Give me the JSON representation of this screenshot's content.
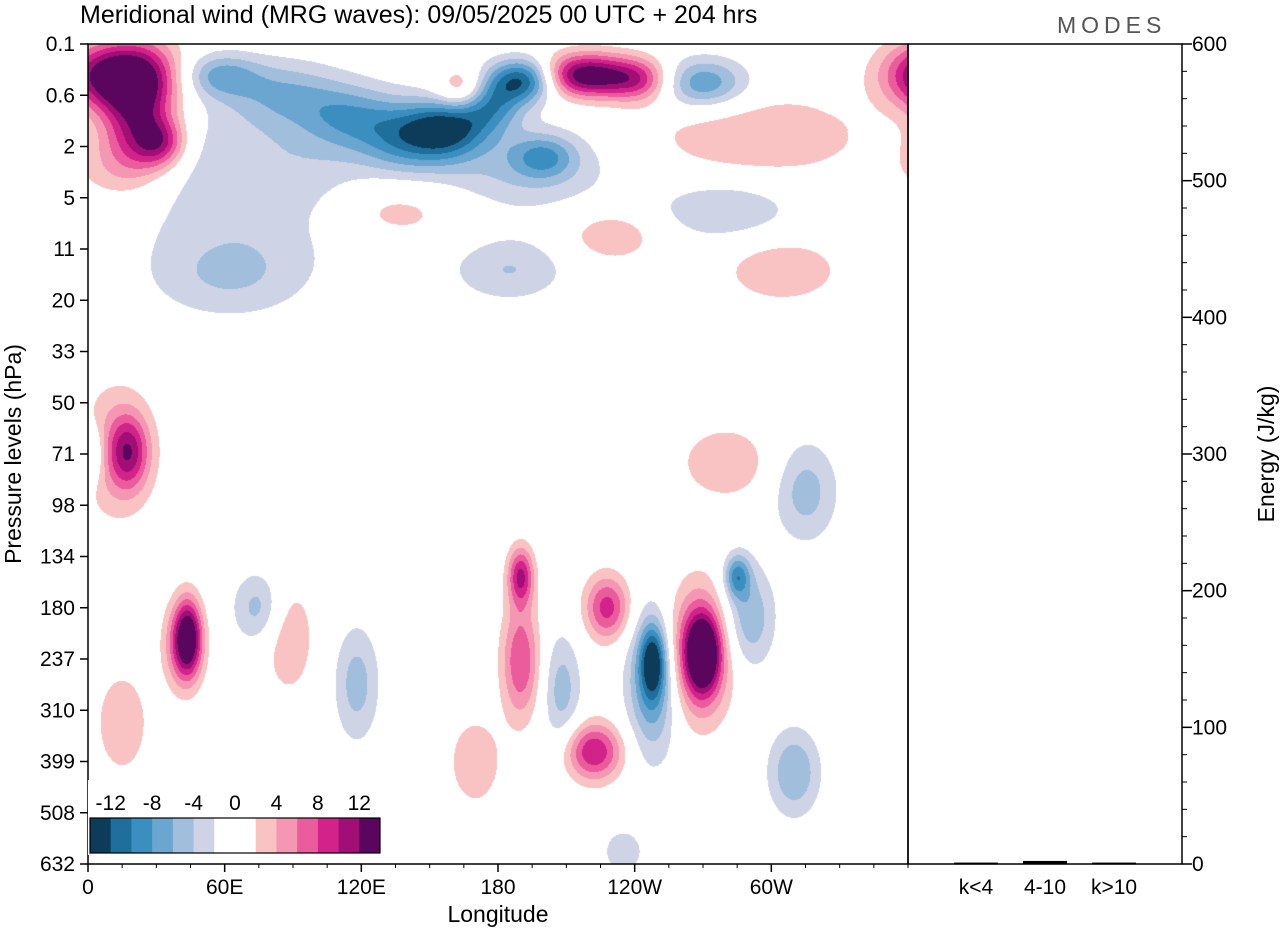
{
  "chart_data": {
    "type": "heatmap",
    "title": "Meridional wind (MRG waves):  09/05/2025  00 UTC  + 204 hrs",
    "brand": "MODES",
    "xlabel": "Longitude",
    "ylabel": "Pressure levels (hPa)",
    "x_ticks": [
      "0",
      "60E",
      "120E",
      "180",
      "120W",
      "60W"
    ],
    "y_ticks": [
      "0.1",
      "0.6",
      "2",
      "5",
      "11",
      "20",
      "33",
      "50",
      "71",
      "98",
      "134",
      "180",
      "237",
      "310",
      "399",
      "508",
      "632"
    ],
    "colorbar": {
      "labels": [
        "-12",
        "-8",
        "-4",
        "0",
        "4",
        "8",
        "12"
      ],
      "colors": [
        "#0d3b5a",
        "#1f6f9c",
        "#3b8fc0",
        "#6aa6cf",
        "#a1bedc",
        "#cfd3e6",
        "#ffffff",
        "#ffffff",
        "#f9c3c3",
        "#f597b2",
        "#ea5c9c",
        "#d2238b",
        "#a10e76",
        "#5a065f"
      ]
    },
    "blobs": [
      {
        "lon": 8,
        "lev": 0.3,
        "dlon": 14,
        "dlev": 0.45,
        "v": 12
      },
      {
        "lon": 25,
        "lev": 0.35,
        "dlon": 12,
        "dlev": 0.55,
        "v": 9
      },
      {
        "lon": 20,
        "lev": 1.2,
        "dlon": 10,
        "dlev": 0.6,
        "v": 8
      },
      {
        "lon": 32,
        "lev": 1.8,
        "dlon": 8,
        "dlev": 0.35,
        "v": 9
      },
      {
        "lon": 15,
        "lev": 3.0,
        "dlon": 16,
        "dlev": 0.5,
        "v": 4
      },
      {
        "lon": 58,
        "lev": 0.3,
        "dlon": 12,
        "dlev": 0.3,
        "v": -6
      },
      {
        "lon": 85,
        "lev": 0.55,
        "dlon": 18,
        "dlev": 0.45,
        "v": -5
      },
      {
        "lon": 115,
        "lev": 1.0,
        "dlon": 16,
        "dlev": 0.45,
        "v": -6
      },
      {
        "lon": 140,
        "lev": 1.6,
        "dlon": 14,
        "dlev": 0.45,
        "v": -7
      },
      {
        "lon": 158,
        "lev": 1.3,
        "dlon": 12,
        "dlev": 0.4,
        "v": -10
      },
      {
        "lon": 176,
        "lev": 0.7,
        "dlon": 10,
        "dlev": 0.4,
        "v": -9
      },
      {
        "lon": 192,
        "lev": 0.35,
        "dlon": 10,
        "dlev": 0.3,
        "v": -12
      },
      {
        "lon": 218,
        "lev": 0.3,
        "dlon": 14,
        "dlev": 0.3,
        "v": 14
      },
      {
        "lon": 242,
        "lev": 0.35,
        "dlon": 10,
        "dlev": 0.3,
        "v": 8
      },
      {
        "lon": 270,
        "lev": 0.4,
        "dlon": 14,
        "dlev": 0.35,
        "v": -8
      },
      {
        "lon": 165,
        "lev": 0.5,
        "dlon": 8,
        "dlev": 0.3,
        "v": 7
      },
      {
        "lon": 75,
        "lev": 3.5,
        "dlon": 45,
        "dlev": 1.0,
        "v": -4
      },
      {
        "lon": 135,
        "lev": 6.0,
        "dlon": 22,
        "dlev": 0.45,
        "v": 4
      },
      {
        "lon": 190,
        "lev": 3.0,
        "dlon": 30,
        "dlev": 0.6,
        "v": -4
      },
      {
        "lon": 200,
        "lev": 2.4,
        "dlon": 10,
        "dlev": 0.3,
        "v": -6
      },
      {
        "lon": 295,
        "lev": 1.6,
        "dlon": 35,
        "dlev": 0.6,
        "v": 4
      },
      {
        "lon": 280,
        "lev": 6.0,
        "dlon": 22,
        "dlev": 0.45,
        "v": -4
      },
      {
        "lon": 230,
        "lev": 9.0,
        "dlon": 14,
        "dlev": 0.35,
        "v": 4
      },
      {
        "lon": 185,
        "lev": 14.0,
        "dlon": 18,
        "dlev": 0.45,
        "v": -4
      },
      {
        "lon": 62,
        "lev": 15.0,
        "dlon": 25,
        "dlev": 0.6,
        "v": -4
      },
      {
        "lon": 305,
        "lev": 14.0,
        "dlon": 18,
        "dlev": 0.45,
        "v": 4
      },
      {
        "lon": 12,
        "lev": 70.0,
        "dlon": 12,
        "dlev": 0.9,
        "v": 5
      },
      {
        "lon": 18,
        "lev": 70.0,
        "dlon": 6,
        "dlev": 0.5,
        "v": 8
      },
      {
        "lon": 2,
        "lev": 71.0,
        "dlon": 4,
        "dlev": 0.4,
        "v": -5
      },
      {
        "lon": 280,
        "lev": 75.0,
        "dlon": 14,
        "dlev": 0.5,
        "v": 4
      },
      {
        "lon": 315,
        "lev": 90.0,
        "dlon": 10,
        "dlev": 0.7,
        "v": -5
      },
      {
        "lon": 42,
        "lev": 220.0,
        "dlon": 6,
        "dlev": 0.6,
        "v": 8
      },
      {
        "lon": 44,
        "lev": 210.0,
        "dlon": 4,
        "dlev": 0.5,
        "v": 10
      },
      {
        "lon": 15,
        "lev": 330.0,
        "dlon": 8,
        "dlev": 0.7,
        "v": 4
      },
      {
        "lon": 75,
        "lev": 180.0,
        "dlon": 8,
        "dlev": 0.5,
        "v": -5
      },
      {
        "lon": 88,
        "lev": 210.0,
        "dlon": 8,
        "dlev": 0.8,
        "v": 4
      },
      {
        "lon": 118,
        "lev": 270.0,
        "dlon": 7,
        "dlev": 0.8,
        "v": -5
      },
      {
        "lon": 170,
        "lev": 400.0,
        "dlon": 8,
        "dlev": 0.6,
        "v": 4
      },
      {
        "lon": 190,
        "lev": 240.0,
        "dlon": 6,
        "dlev": 0.8,
        "v": 8
      },
      {
        "lon": 190,
        "lev": 150.0,
        "dlon": 4,
        "dlev": 0.4,
        "v": 10
      },
      {
        "lon": 208,
        "lev": 280.0,
        "dlon": 6,
        "dlev": 0.8,
        "v": -5
      },
      {
        "lon": 228,
        "lev": 180.0,
        "dlon": 7,
        "dlev": 0.45,
        "v": 9
      },
      {
        "lon": 222,
        "lev": 380.0,
        "dlon": 9,
        "dlev": 0.4,
        "v": 10
      },
      {
        "lon": 248,
        "lev": 270.0,
        "dlon": 8,
        "dlev": 1.0,
        "v": -8
      },
      {
        "lon": 248,
        "lev": 240.0,
        "dlon": 4,
        "dlev": 0.5,
        "v": -10
      },
      {
        "lon": 268,
        "lev": 230.0,
        "dlon": 10,
        "dlev": 0.9,
        "v": 10
      },
      {
        "lon": 270,
        "lev": 230.0,
        "dlon": 5,
        "dlev": 0.5,
        "v": 12
      },
      {
        "lon": 290,
        "lev": 190.0,
        "dlon": 8,
        "dlev": 0.7,
        "v": -6
      },
      {
        "lon": 285,
        "lev": 150.0,
        "dlon": 4,
        "dlev": 0.3,
        "v": -8
      },
      {
        "lon": 310,
        "lev": 420.0,
        "dlon": 8,
        "dlev": 0.6,
        "v": -6
      },
      {
        "lon": 235,
        "lev": 600.0,
        "dlon": 6,
        "dlev": 0.3,
        "v": -4
      }
    ],
    "energy_panel": {
      "ylabel": "Energy (J/kg)",
      "y_ticks": [
        "0",
        "100",
        "200",
        "300",
        "400",
        "500",
        "600"
      ],
      "ylim": [
        0,
        600
      ],
      "categories": [
        "k<4",
        "4-10",
        "k>10"
      ],
      "values": [
        0.3,
        1.5,
        0.3
      ]
    }
  }
}
